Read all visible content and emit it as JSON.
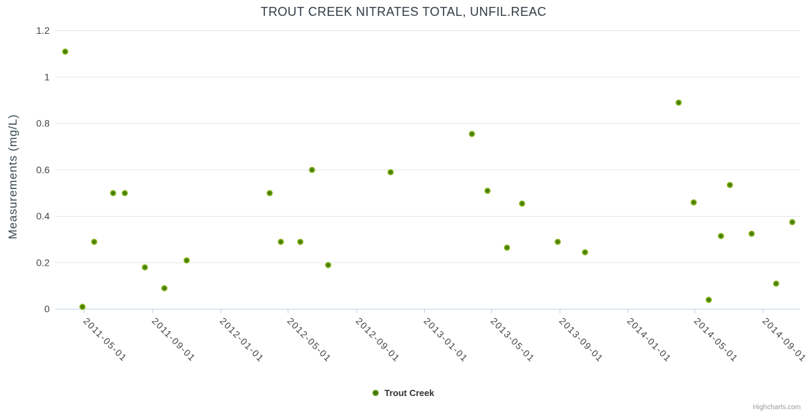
{
  "chart": {
    "title": "TROUT CREEK NITRATES TOTAL, UNFIL.REAC",
    "y_axis_title": "Measurements (mg/L)",
    "legend": {
      "label": "Trout Creek"
    },
    "credits": "Highcharts.com",
    "colors": {
      "marker_core": "#3b6d00",
      "marker_mid": "#4f8603",
      "marker_edge": "#99c32a",
      "grid_line": "#e6e6e6",
      "axis_line": "#c0d0e0",
      "tick_mark": "#c0d0e0",
      "axis_label_text": "#444444",
      "background": "#ffffff"
    }
  },
  "chart_data": {
    "type": "scatter",
    "title": "TROUT CREEK NITRATES TOTAL, UNFIL.REAC",
    "xlabel": "",
    "ylabel": "Measurements (mg/L)",
    "ylim": [
      0,
      1.2
    ],
    "y_ticks": [
      0,
      0.2,
      0.4,
      0.6,
      0.8,
      1,
      1.2
    ],
    "x_ticks": [
      "2011-05-01",
      "2011-09-01",
      "2012-01-01",
      "2012-05-01",
      "2012-09-01",
      "2013-01-01",
      "2013-05-01",
      "2013-09-01",
      "2014-01-01",
      "2014-05-01",
      "2014-09-01"
    ],
    "x_range": [
      "2011-03-10",
      "2014-11-06"
    ],
    "grid": "horizontal",
    "legend_position": "bottom-center",
    "series": [
      {
        "name": "Trout Creek",
        "points": [
          {
            "date": "2011-03-28",
            "value": 1.11
          },
          {
            "date": "2011-04-28",
            "value": 0.01
          },
          {
            "date": "2011-05-19",
            "value": 0.29
          },
          {
            "date": "2011-06-22",
            "value": 0.5
          },
          {
            "date": "2011-07-13",
            "value": 0.5
          },
          {
            "date": "2011-08-18",
            "value": 0.18
          },
          {
            "date": "2011-09-22",
            "value": 0.09
          },
          {
            "date": "2011-11-01",
            "value": 0.21
          },
          {
            "date": "2012-03-29",
            "value": 0.5
          },
          {
            "date": "2012-04-18",
            "value": 0.29
          },
          {
            "date": "2012-05-23",
            "value": 0.29
          },
          {
            "date": "2012-06-13",
            "value": 0.6
          },
          {
            "date": "2012-07-12",
            "value": 0.19
          },
          {
            "date": "2012-11-01",
            "value": 0.59
          },
          {
            "date": "2013-03-27",
            "value": 0.755
          },
          {
            "date": "2013-04-24",
            "value": 0.51
          },
          {
            "date": "2013-05-29",
            "value": 0.265
          },
          {
            "date": "2013-06-25",
            "value": 0.455
          },
          {
            "date": "2013-08-28",
            "value": 0.29
          },
          {
            "date": "2013-10-16",
            "value": 0.245
          },
          {
            "date": "2014-04-02",
            "value": 0.89
          },
          {
            "date": "2014-04-29",
            "value": 0.46
          },
          {
            "date": "2014-05-26",
            "value": 0.04
          },
          {
            "date": "2014-06-17",
            "value": 0.315
          },
          {
            "date": "2014-07-03",
            "value": 0.535
          },
          {
            "date": "2014-08-11",
            "value": 0.325
          },
          {
            "date": "2014-09-24",
            "value": 0.11
          },
          {
            "date": "2014-10-23",
            "value": 0.375
          }
        ]
      }
    ]
  }
}
